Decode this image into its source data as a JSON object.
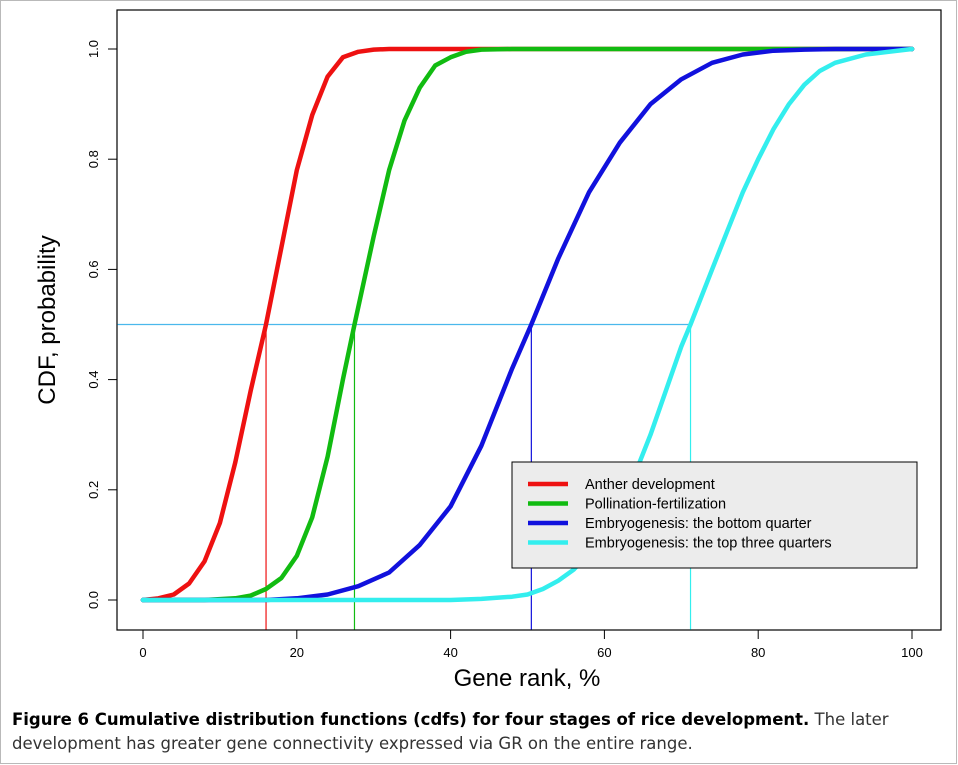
{
  "chart_data": {
    "type": "line",
    "title": "",
    "xlabel": "Gene rank, %",
    "ylabel": "CDF, probability",
    "xlim": [
      0,
      100
    ],
    "ylim": [
      0,
      1
    ],
    "x_ticks": [
      0,
      20,
      40,
      60,
      80,
      100
    ],
    "y_ticks": [
      0.0,
      0.2,
      0.4,
      0.6,
      0.8,
      1.0
    ],
    "y_tick_labels": [
      "0.0",
      "0.2",
      "0.4",
      "0.6",
      "0.8",
      "1.0"
    ],
    "grid": false,
    "legend_position": "bottom-right",
    "reference_line": {
      "y": 0.5,
      "color": "#4ab8ec"
    },
    "series": [
      {
        "name": "Anther development",
        "color": "#ee1111",
        "x": [
          0,
          2,
          4,
          6,
          8,
          10,
          12,
          14,
          16,
          18,
          20,
          22,
          24,
          26,
          28,
          30,
          32,
          34,
          100
        ],
        "y": [
          0.0,
          0.003,
          0.01,
          0.03,
          0.07,
          0.14,
          0.25,
          0.38,
          0.5,
          0.64,
          0.78,
          0.88,
          0.95,
          0.985,
          0.995,
          0.999,
          1.0,
          1.0,
          1.0
        ],
        "median_x": 16
      },
      {
        "name": "Pollination-fertilization",
        "color": "#11bb11",
        "x": [
          0,
          8,
          12,
          14,
          16,
          18,
          20,
          22,
          24,
          26,
          27.5,
          30,
          32,
          34,
          36,
          38,
          40,
          42,
          44,
          48,
          100
        ],
        "y": [
          0.0,
          0.0,
          0.003,
          0.008,
          0.02,
          0.04,
          0.08,
          0.15,
          0.26,
          0.4,
          0.5,
          0.66,
          0.78,
          0.87,
          0.93,
          0.97,
          0.985,
          0.995,
          0.999,
          1.0,
          1.0
        ],
        "median_x": 27.5
      },
      {
        "name": "Embryogenesis: the bottom quarter",
        "color": "#1111dd",
        "x": [
          0,
          16,
          20,
          24,
          28,
          32,
          36,
          40,
          44,
          48,
          50.5,
          54,
          58,
          62,
          66,
          70,
          74,
          78,
          82,
          86,
          90,
          95,
          100
        ],
        "y": [
          0.0,
          0.0,
          0.003,
          0.01,
          0.025,
          0.05,
          0.1,
          0.17,
          0.28,
          0.42,
          0.5,
          0.62,
          0.74,
          0.83,
          0.9,
          0.945,
          0.975,
          0.99,
          0.997,
          0.999,
          1.0,
          1.0,
          1.0
        ],
        "median_x": 50.5
      },
      {
        "name": "Embryogenesis: the top three quarters",
        "color": "#33eeee",
        "x": [
          0,
          40,
          44,
          46,
          48,
          50,
          52,
          54,
          56,
          58,
          60,
          62,
          64,
          66,
          68,
          70,
          71.2,
          74,
          76,
          78,
          80,
          82,
          84,
          86,
          88,
          90,
          94,
          100
        ],
        "y": [
          0.0,
          0.0,
          0.002,
          0.004,
          0.006,
          0.01,
          0.02,
          0.035,
          0.055,
          0.085,
          0.12,
          0.17,
          0.23,
          0.3,
          0.38,
          0.46,
          0.5,
          0.6,
          0.67,
          0.74,
          0.8,
          0.855,
          0.9,
          0.935,
          0.96,
          0.975,
          0.99,
          1.0
        ],
        "median_x": 71.2
      }
    ]
  },
  "caption": {
    "bold": "Figure 6 Cumulative distribution functions (cdfs) for four stages of rice development.",
    "text": " The later development has greater gene connectivity expressed via GR on the entire range."
  }
}
